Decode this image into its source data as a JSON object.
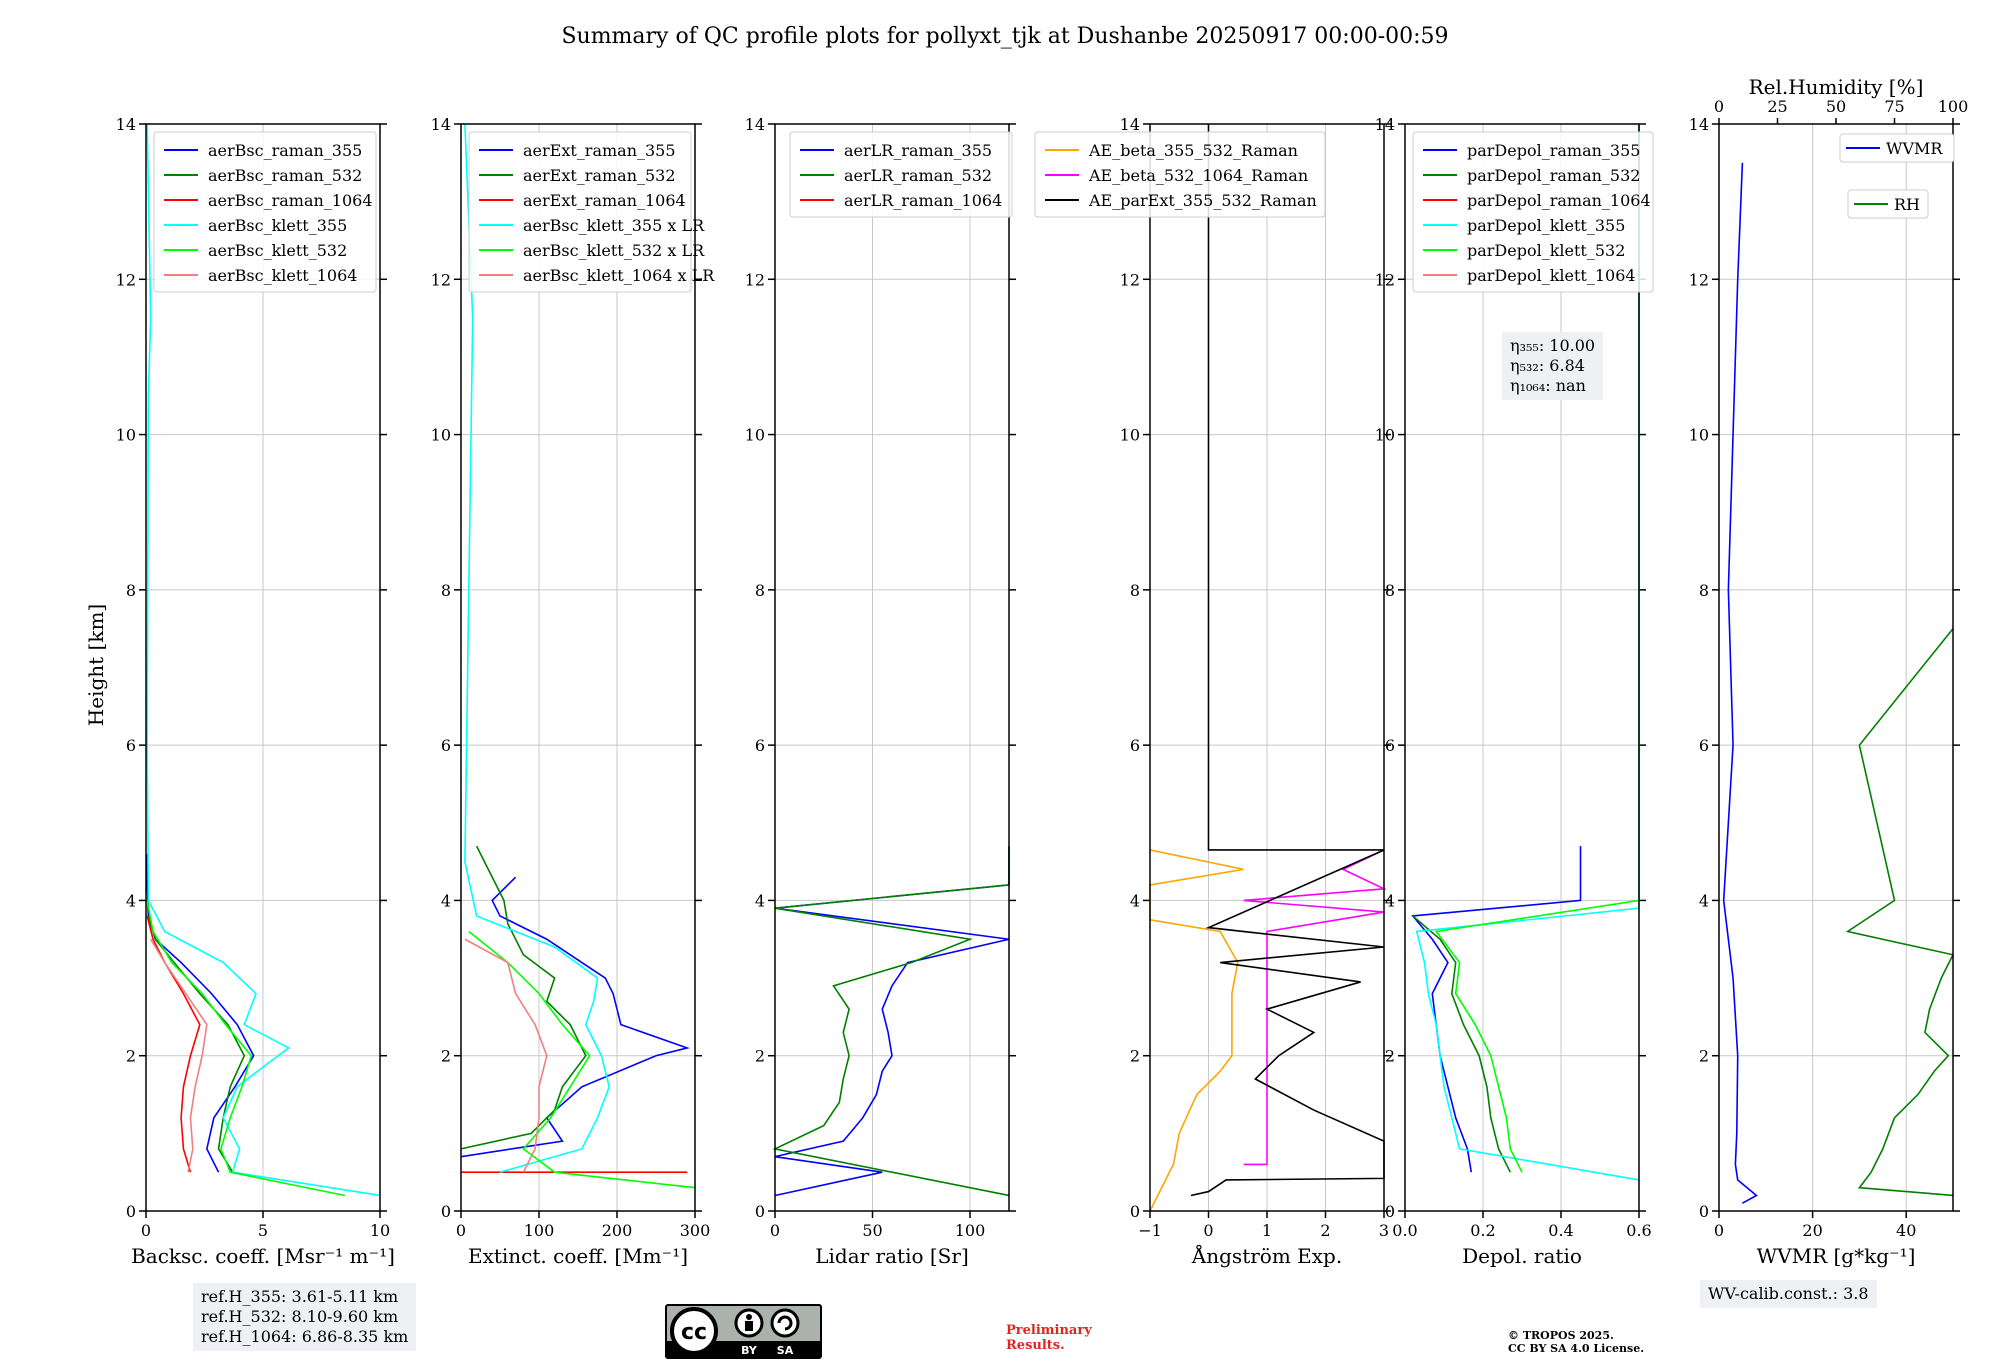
{
  "title": "Summary of QC profile plots for pollyxt_tjk at Dushanbe 20250917 00:00-00:59",
  "height_label": "Height [km]",
  "panels": [
    {
      "id": "bsc",
      "xlabel": "Backsc. coeff. [Msr⁻¹ m⁻¹]",
      "xlim": [
        0,
        10
      ],
      "xticks": [
        "0",
        "5",
        "10"
      ],
      "legend": [
        "aerBsc_raman_355",
        "aerBsc_raman_532",
        "aerBsc_raman_1064",
        "aerBsc_klett_355",
        "aerBsc_klett_532",
        "aerBsc_klett_1064"
      ]
    },
    {
      "id": "ext",
      "xlabel": "Extinct. coeff. [Mm⁻¹]",
      "xlim": [
        0,
        300
      ],
      "xticks": [
        "0",
        "100",
        "200",
        "300"
      ],
      "legend": [
        "aerExt_raman_355",
        "aerExt_raman_532",
        "aerExt_raman_1064",
        "aerBsc_klett_355 x LR",
        "aerBsc_klett_532 x LR",
        "aerBsc_klett_1064 x LR"
      ]
    },
    {
      "id": "lr",
      "xlabel": "Lidar ratio [Sr]",
      "xlim": [
        0,
        120
      ],
      "xticks": [
        "0",
        "50",
        "100"
      ],
      "legend": [
        "aerLR_raman_355",
        "aerLR_raman_532",
        "aerLR_raman_1064"
      ]
    },
    {
      "id": "ae",
      "xlabel": "Ångström Exp.",
      "xlim": [
        -1,
        3
      ],
      "xticks": [
        "−1",
        "0",
        "1",
        "2",
        "3"
      ],
      "legend": [
        "AE_beta_355_532_Raman",
        "AE_beta_532_1064_Raman",
        "AE_parExt_355_532_Raman"
      ]
    },
    {
      "id": "dep",
      "xlabel": "Depol. ratio",
      "xlim": [
        0,
        0.6
      ],
      "xticks": [
        "0.0",
        "0.2",
        "0.4",
        "0.6"
      ],
      "legend": [
        "parDepol_raman_355",
        "parDepol_raman_532",
        "parDepol_raman_1064",
        "parDepol_klett_355",
        "parDepol_klett_532",
        "parDepol_klett_1064"
      ]
    },
    {
      "id": "wv",
      "xlabel": "WVMR [g*kg⁻¹]",
      "xlim": [
        0,
        50
      ],
      "xticks": [
        "0",
        "20",
        "40"
      ],
      "top_label": "Rel.Humidity [%]",
      "top_ticks": [
        "0",
        "25",
        "50",
        "75",
        "100"
      ],
      "legend": [
        "WVMR",
        "RH"
      ]
    }
  ],
  "yticks": [
    "0",
    "2",
    "4",
    "6",
    "8",
    "10",
    "12",
    "14"
  ],
  "colors": {
    "c355": "#0000ff",
    "c532": "#008000",
    "c1064": "#ff0000",
    "k355": "#00ffff",
    "k532": "#00ff00",
    "k1064": "#f08080",
    "orange": "#ffa500",
    "magenta": "#ff00ff",
    "black": "#000000"
  },
  "eta": {
    "eta355": "η₃₅₅: 10.00",
    "eta532": "η₅₃₂: 6.84",
    "eta1064": "η₁₀₆₄: nan"
  },
  "ref": {
    "h355": "ref.H_355: 3.61-5.11 km",
    "h532": "ref.H_532: 8.10-9.60 km",
    "h1064": "ref.H_1064: 6.86-8.35 km"
  },
  "wv_calib": "WV-calib.const.: 3.8",
  "license_badge": {
    "by": "BY",
    "sa": "SA"
  },
  "preliminary": {
    "line1": "Preliminary",
    "line2": "Results."
  },
  "copyright": {
    "line1": "© TROPOS 2025.",
    "line2": "CC BY SA 4.0 License."
  },
  "chart_data": [
    {
      "type": "line",
      "panel": "bsc",
      "ylim": [
        0,
        14
      ],
      "series": [
        {
          "name": "aerBsc_raman_355",
          "y": [
            0.5,
            0.8,
            1.2,
            1.6,
            2.0,
            2.4,
            2.8,
            3.2,
            3.5,
            3.8,
            4.2,
            4.6
          ],
          "x": [
            3.1,
            2.6,
            2.9,
            3.8,
            4.6,
            3.9,
            2.8,
            1.5,
            0.4,
            0.1,
            0.05,
            0.05
          ]
        },
        {
          "name": "aerBsc_raman_532",
          "y": [
            0.5,
            0.8,
            1.2,
            1.6,
            2.0,
            2.4,
            2.8,
            3.2,
            3.5,
            3.8
          ],
          "x": [
            3.7,
            3.1,
            3.3,
            3.6,
            4.2,
            3.5,
            2.3,
            1.2,
            0.4,
            0.1
          ]
        },
        {
          "name": "aerBsc_raman_1064",
          "y": [
            0.5,
            0.8,
            1.2,
            1.6,
            2.0,
            2.4,
            2.8,
            3.2,
            3.5,
            3.8
          ],
          "x": [
            1.9,
            1.6,
            1.5,
            1.6,
            1.9,
            2.3,
            1.6,
            0.8,
            0.3,
            0.05
          ]
        },
        {
          "name": "aerBsc_klett_355",
          "y": [
            0.2,
            0.5,
            0.8,
            1.2,
            1.6,
            1.9,
            2.1,
            2.4,
            2.8,
            3.2,
            3.6,
            4.0,
            6.0,
            10.5,
            11.5,
            14.0
          ],
          "x": [
            10,
            3.7,
            4.0,
            3.3,
            3.9,
            5.2,
            6.1,
            4.2,
            4.7,
            3.3,
            0.8,
            0.1,
            0.05,
            0.1,
            0.2,
            0.05
          ]
        },
        {
          "name": "aerBsc_klett_532",
          "y": [
            0.2,
            0.5,
            0.8,
            1.2,
            1.6,
            2.0,
            2.4,
            2.8,
            3.2,
            3.6,
            4.0
          ],
          "x": [
            8.5,
            3.6,
            3.2,
            3.6,
            4.1,
            4.5,
            3.4,
            2.4,
            1.1,
            0.3,
            0.05
          ]
        },
        {
          "name": "aerBsc_klett_1064",
          "y": [
            0.5,
            0.8,
            1.2,
            1.6,
            2.0,
            2.4,
            2.8,
            3.2,
            3.5
          ],
          "x": [
            1.8,
            2.0,
            1.9,
            2.1,
            2.4,
            2.6,
            1.7,
            0.8,
            0.2
          ]
        }
      ]
    },
    {
      "type": "line",
      "panel": "ext",
      "ylim": [
        0,
        14
      ],
      "series": [
        {
          "name": "aerExt_raman_355",
          "y": [
            0.7,
            0.9,
            1.2,
            1.6,
            2.0,
            2.1,
            2.4,
            2.8,
            3.0,
            3.2,
            3.5,
            3.8,
            4.0,
            4.3
          ],
          "x": [
            0,
            130,
            110,
            155,
            250,
            290,
            205,
            195,
            185,
            155,
            110,
            50,
            40,
            70
          ]
        },
        {
          "name": "aerExt_raman_532",
          "y": [
            0.8,
            1.0,
            1.3,
            1.6,
            2.0,
            2.4,
            2.7,
            3.0,
            3.3,
            3.7,
            4.0,
            4.3,
            4.7
          ],
          "x": [
            0,
            90,
            120,
            130,
            160,
            140,
            110,
            120,
            80,
            60,
            55,
            40,
            20
          ]
        },
        {
          "name": "aerExt_raman_1064",
          "y": [
            0.5,
            0.5
          ],
          "x": [
            0,
            290
          ]
        },
        {
          "name": "aerBsc_klett_355 x LR",
          "y": [
            0.5,
            0.8,
            1.2,
            1.6,
            2.0,
            2.4,
            2.7,
            3.0,
            3.4,
            3.8,
            4.5,
            11.5,
            14
          ],
          "x": [
            50,
            155,
            175,
            190,
            180,
            160,
            170,
            175,
            120,
            20,
            5,
            15,
            5
          ]
        },
        {
          "name": "aerBsc_klett_532 x LR",
          "y": [
            0.3,
            0.5,
            0.8,
            1.2,
            1.6,
            2.0,
            2.4,
            2.8,
            3.2,
            3.6
          ],
          "x": [
            300,
            120,
            80,
            115,
            140,
            165,
            130,
            100,
            60,
            10
          ]
        },
        {
          "name": "aerBsc_klett_1064 x LR",
          "y": [
            0.5,
            0.8,
            1.2,
            1.6,
            2.0,
            2.4,
            2.8,
            3.2,
            3.5
          ],
          "x": [
            80,
            95,
            100,
            100,
            110,
            95,
            70,
            60,
            5
          ]
        }
      ]
    },
    {
      "type": "line",
      "panel": "lr",
      "ylim": [
        0,
        14
      ],
      "series": [
        {
          "name": "aerLR_raman_355",
          "y": [
            0.2,
            0.5,
            0.7,
            0.9,
            1.2,
            1.5,
            1.8,
            2.0,
            2.3,
            2.6,
            2.9,
            3.2,
            3.5,
            3.9,
            4.2,
            4.7
          ],
          "x": [
            0,
            55,
            0,
            35,
            45,
            52,
            55,
            60,
            58,
            55,
            60,
            68,
            120,
            0,
            120,
            120
          ]
        },
        {
          "name": "aerLR_raman_532",
          "y": [
            0.2,
            0.8,
            1.1,
            1.4,
            1.7,
            2.0,
            2.3,
            2.6,
            2.9,
            3.2,
            3.5,
            3.9,
            4.2,
            4.7
          ],
          "x": [
            120,
            0,
            25,
            33,
            35,
            38,
            35,
            38,
            30,
            70,
            100,
            0,
            120,
            120
          ]
        },
        {
          "name": "aerLR_raman_1064",
          "y": [],
          "x": []
        }
      ]
    },
    {
      "type": "line",
      "panel": "ae",
      "ylim": [
        0,
        14
      ],
      "series": [
        {
          "name": "AE_beta_355_532_Raman",
          "y": [
            0.0,
            0.6,
            1.0,
            1.5,
            1.8,
            2.0,
            2.4,
            2.8,
            3.2,
            3.6,
            3.75,
            4.2,
            4.4,
            4.65
          ],
          "x": [
            -1,
            -0.6,
            -0.5,
            -0.2,
            0.2,
            0.4,
            0.4,
            0.4,
            0.5,
            0.2,
            -1,
            -1,
            0.6,
            -1
          ]
        },
        {
          "name": "AE_beta_532_1064_Raman",
          "y": [
            0.6,
            0.6,
            1.0,
            2.0,
            3.0,
            3.6,
            3.85,
            4.0,
            4.15,
            4.4,
            4.65
          ],
          "x": [
            0.6,
            1.0,
            1.0,
            1.0,
            1.0,
            1.0,
            3.0,
            0.6,
            3.0,
            2.3,
            3.0
          ]
        },
        {
          "name": "AE_parExt_355_532_Raman",
          "y": [
            0.2,
            0.25,
            0.4,
            0.42,
            0.9,
            1.3,
            1.7,
            2.0,
            2.3,
            2.6,
            2.95,
            3.2,
            3.4,
            3.65,
            4.65,
            4.65,
            14
          ],
          "x": [
            -0.3,
            0,
            0.3,
            3.0,
            3.0,
            1.8,
            0.8,
            1.2,
            1.8,
            1.0,
            2.6,
            0.2,
            3.0,
            0,
            3.0,
            0,
            0
          ]
        }
      ]
    },
    {
      "type": "line",
      "panel": "dep",
      "ylim": [
        0,
        14
      ],
      "series": [
        {
          "name": "parDepol_raman_355",
          "y": [
            0.5,
            0.8,
            1.2,
            1.6,
            2.0,
            2.4,
            2.8,
            3.2,
            3.5,
            3.8,
            4.0,
            4.7
          ],
          "x": [
            0.17,
            0.16,
            0.13,
            0.11,
            0.09,
            0.08,
            0.07,
            0.11,
            0.07,
            0.02,
            0.45,
            0.45
          ]
        },
        {
          "name": "parDepol_raman_532",
          "y": [
            0.5,
            0.8,
            1.2,
            1.6,
            2.0,
            2.4,
            2.8,
            3.2,
            3.5,
            3.8
          ],
          "x": [
            0.27,
            0.24,
            0.22,
            0.21,
            0.19,
            0.15,
            0.12,
            0.13,
            0.09,
            0.02
          ]
        },
        {
          "name": "parDepol_raman_1064",
          "y": [],
          "x": []
        },
        {
          "name": "parDepol_klett_355",
          "y": [
            0.4,
            0.8,
            1.2,
            1.6,
            2.0,
            2.4,
            2.8,
            3.2,
            3.6,
            3.9,
            14
          ],
          "x": [
            0.6,
            0.14,
            0.12,
            0.1,
            0.09,
            0.08,
            0.06,
            0.05,
            0.03,
            0.6,
            0.6
          ]
        },
        {
          "name": "parDepol_klett_532",
          "y": [
            0.5,
            0.8,
            1.2,
            1.6,
            2.0,
            2.4,
            2.8,
            3.2,
            3.6,
            4.0,
            14
          ],
          "x": [
            0.3,
            0.27,
            0.26,
            0.24,
            0.22,
            0.18,
            0.13,
            0.14,
            0.08,
            0.6,
            0.6
          ]
        },
        {
          "name": "parDepol_klett_1064",
          "y": [],
          "x": []
        }
      ]
    },
    {
      "type": "line",
      "panel": "wv",
      "ylim": [
        0,
        14
      ],
      "series": [
        {
          "name": "WVMR",
          "y": [
            0.1,
            0.2,
            0.4,
            0.6,
            1.0,
            2.0,
            3.0,
            3.5,
            4.0,
            5.0,
            6.0,
            8.0,
            10.0,
            12.0,
            13.5
          ],
          "x": [
            5,
            8,
            4,
            3.5,
            3.8,
            4,
            3,
            2,
            1,
            2,
            3,
            2,
            3,
            4,
            5
          ]
        },
        {
          "name": "RH",
          "y": [
            0.2,
            0.3,
            0.5,
            0.8,
            1.2,
            1.5,
            1.8,
            2.0,
            2.3,
            2.6,
            3.0,
            3.3,
            3.6,
            4.0,
            6.0,
            7.5
          ],
          "x": [
            100,
            60,
            65,
            70,
            75,
            85,
            92,
            98,
            88,
            90,
            95,
            100,
            55,
            75,
            60,
            100
          ],
          "scale": "RH %"
        }
      ]
    }
  ]
}
